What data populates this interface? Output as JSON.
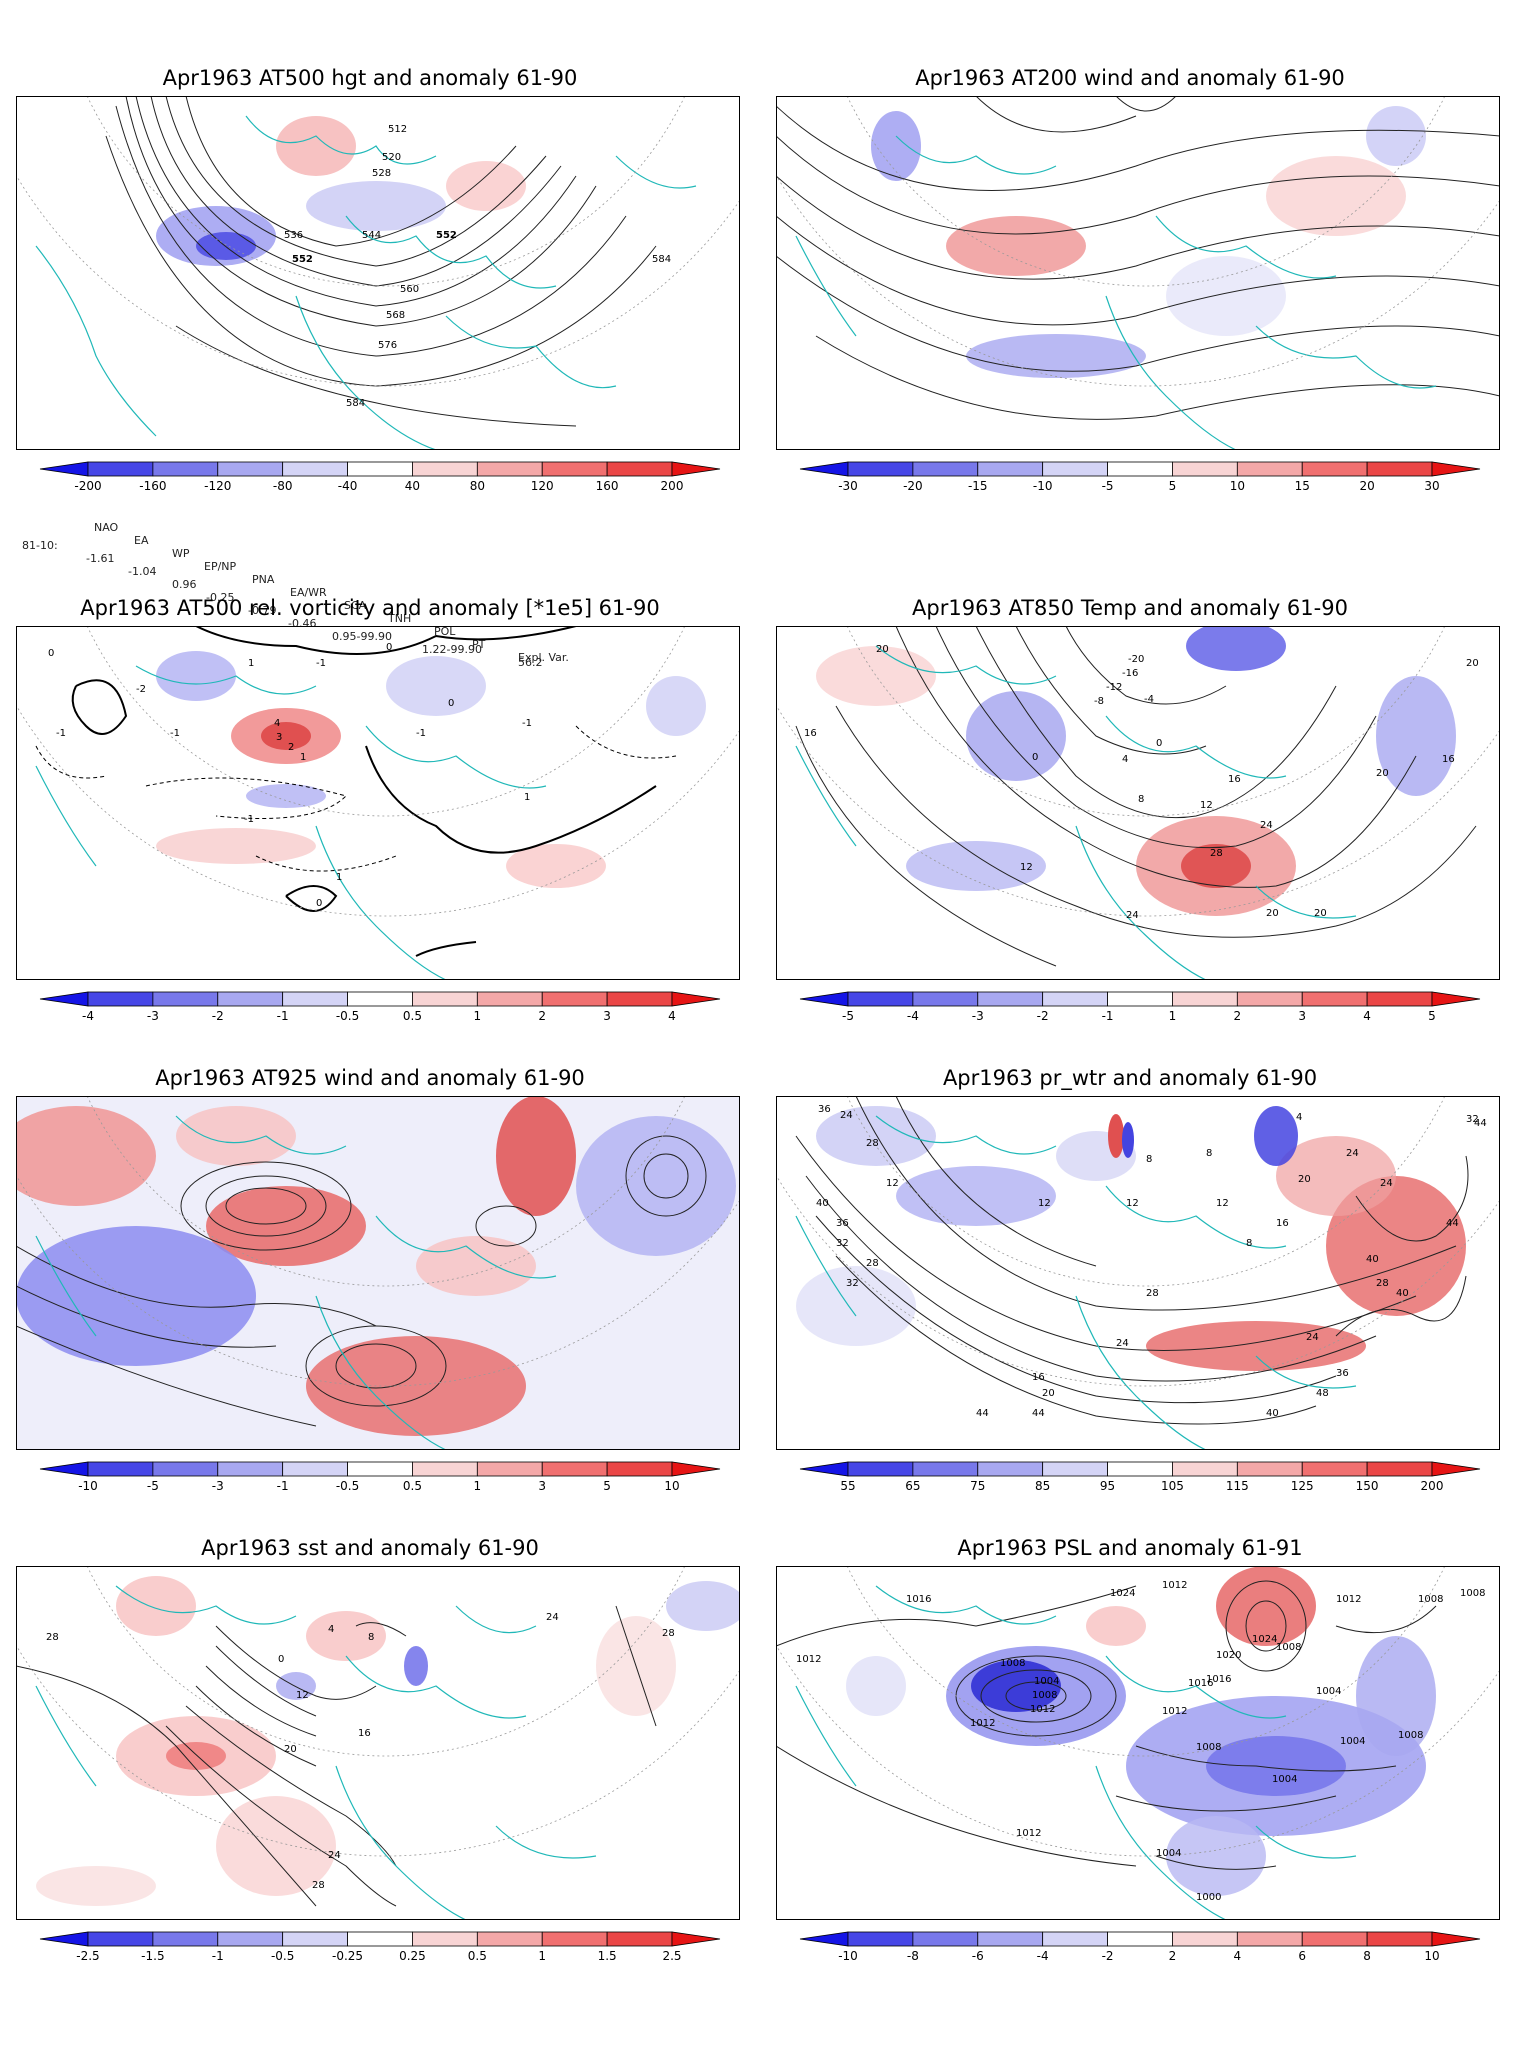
{
  "panels": [
    {
      "title": "Apr1963 AT500 hgt and anomaly 61-90",
      "colorbar": [
        "-200",
        "-160",
        "-120",
        "-80",
        "-40",
        "40",
        "80",
        "120",
        "160",
        "200"
      ],
      "contour_labels": [
        "512",
        "520",
        "528",
        "536",
        "544",
        "552",
        "552",
        "560",
        "568",
        "576",
        "584",
        "584"
      ],
      "stats": {
        "headers": [
          "NAO",
          "EA",
          "WP",
          "EP/NP",
          "PNA",
          "EA/WR",
          "SCA",
          "TNH",
          "POL",
          "PT",
          "Expl. Var."
        ],
        "row_label": "81-10:",
        "values": [
          "-1.61",
          "-1.04",
          "0.96",
          "-0.25",
          "-0.79",
          "-0.46",
          "0.95-99.90",
          "1.22-99.90",
          "56.2"
        ]
      }
    },
    {
      "title": "Apr1963 AT200 wind and anomaly 61-90",
      "colorbar": [
        "-30",
        "-20",
        "-15",
        "-10",
        "-5",
        "5",
        "10",
        "15",
        "20",
        "30"
      ],
      "contour_labels": []
    },
    {
      "title": "Apr1963 AT500 rel. vorticity and anomaly [*1e5] 61-90",
      "colorbar": [
        "-4",
        "-3",
        "-2",
        "-1",
        "-0.5",
        "0.5",
        "1",
        "2",
        "3",
        "4"
      ],
      "contour_labels": [
        "0",
        "-1",
        "-2",
        "1",
        "-1",
        "0",
        "4",
        "3",
        "2",
        "1",
        "-1",
        "-1",
        "0",
        "-1",
        "1",
        "-1",
        "1",
        "0"
      ]
    },
    {
      "title": "Apr1963 AT850 Temp and anomaly 61-90",
      "colorbar": [
        "-5",
        "-4",
        "-3",
        "-2",
        "-1",
        "1",
        "2",
        "3",
        "4",
        "5"
      ],
      "contour_labels": [
        "20",
        "16",
        "-20",
        "-16",
        "-12",
        "-8",
        "-4",
        "0",
        "0",
        "4",
        "8",
        "12",
        "16",
        "20",
        "24",
        "28",
        "12",
        "24",
        "20",
        "20",
        "16",
        "20"
      ]
    },
    {
      "title": "Apr1963 AT925 wind and anomaly 61-90",
      "colorbar": [
        "-10",
        "-5",
        "-3",
        "-1",
        "-0.5",
        "0.5",
        "1",
        "3",
        "5",
        "10"
      ],
      "contour_labels": []
    },
    {
      "title": "Apr1963 pr_wtr and anomaly 61-90",
      "colorbar": [
        "55",
        "65",
        "75",
        "85",
        "95",
        "105",
        "115",
        "125",
        "150",
        "200"
      ],
      "contour_labels": [
        "36",
        "24",
        "28",
        "8",
        "8",
        "4",
        "12",
        "12",
        "12",
        "16",
        "20",
        "24",
        "24",
        "28",
        "32",
        "40",
        "44",
        "44",
        "48",
        "40",
        "36",
        "32",
        "28",
        "24",
        "20",
        "16",
        "12",
        "28",
        "32",
        "36",
        "40",
        "44",
        "44",
        "40",
        "24",
        "8"
      ]
    },
    {
      "title": "Apr1963 sst and anomaly 61-90",
      "colorbar": [
        "-2.5",
        "-1.5",
        "-1",
        "-0.5",
        "-0.25",
        "0.25",
        "0.5",
        "1",
        "1.5",
        "2.5"
      ],
      "contour_labels": [
        "28",
        "0",
        "4",
        "8",
        "12",
        "16",
        "20",
        "24",
        "28",
        "28",
        "24"
      ]
    },
    {
      "title": "Apr1963 PSL and anomaly 61-91",
      "colorbar": [
        "-10",
        "-8",
        "-6",
        "-4",
        "-2",
        "2",
        "4",
        "6",
        "8",
        "10"
      ],
      "contour_labels": [
        "1012",
        "1016",
        "1024",
        "1012",
        "1024",
        "1004",
        "1008",
        "1012",
        "1008",
        "1020",
        "1016",
        "1004",
        "1008",
        "1012",
        "1016",
        "1012",
        "1008",
        "1004",
        "1008",
        "1004",
        "1008",
        "1012",
        "1004",
        "1000",
        "1008",
        "1012"
      ]
    }
  ]
}
